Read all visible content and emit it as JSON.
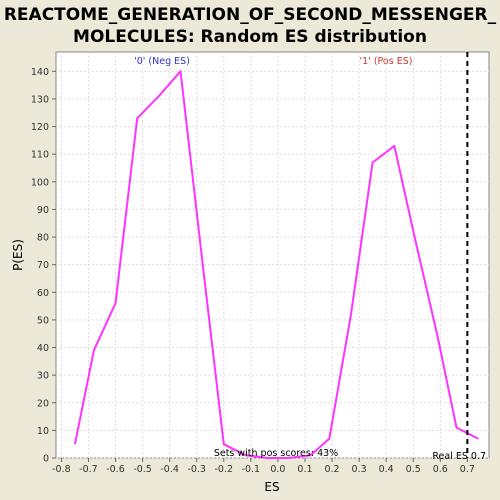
{
  "chart_data": {
    "type": "line",
    "title_lines": [
      "REACTOME_GENERATION_OF_SECOND_MESSENGER_",
      "MOLECULES: Random ES distribution"
    ],
    "xlabel": "ES",
    "ylabel": "P(ES)",
    "xlim": [
      -0.82,
      0.78
    ],
    "ylim": [
      0,
      147
    ],
    "x_ticks": [
      "-0.8",
      "-0.7",
      "-0.6",
      "-0.5",
      "-0.4",
      "-0.3",
      "-0.2",
      "-0.1",
      "0.0",
      "0.1",
      "0.2",
      "0.3",
      "0.4",
      "0.5",
      "0.6",
      "0.7"
    ],
    "y_ticks": [
      "0",
      "10",
      "20",
      "30",
      "40",
      "50",
      "60",
      "70",
      "80",
      "90",
      "100",
      "110",
      "120",
      "130",
      "140"
    ],
    "grid": true,
    "series": [
      {
        "color": "#FF33FF",
        "x": [
          -0.75,
          -0.68,
          -0.6,
          -0.52,
          -0.44,
          -0.36,
          -0.28,
          -0.2,
          -0.12,
          -0.04,
          0.04,
          0.12,
          0.19,
          0.27,
          0.35,
          0.43,
          0.51,
          0.59,
          0.66,
          0.74
        ],
        "y": [
          5,
          39,
          56,
          123,
          131,
          140,
          72,
          5,
          1,
          0,
          0,
          1,
          7,
          52,
          107,
          113,
          78,
          44,
          11,
          7
        ]
      }
    ],
    "real_es": 0.7,
    "real_es_line_color": "#000000",
    "annotations": {
      "neg_label": "'0' (Neg ES)",
      "neg_color": "#3333CC",
      "pos_label": "'1' (Pos ES)",
      "pos_color": "#CC3333",
      "pos_scores_text": "Sets with pos scores: 43%",
      "real_es_text": "Real ES 0.7"
    }
  }
}
